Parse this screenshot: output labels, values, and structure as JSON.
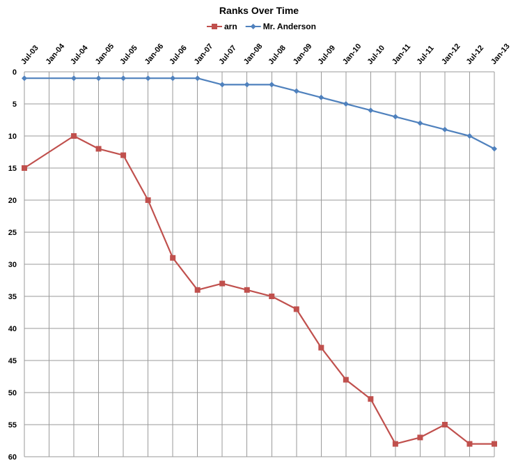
{
  "chart_data": {
    "type": "line",
    "title": "Ranks Over Time",
    "xlabel": "",
    "ylabel": "",
    "categories": [
      "Jul-03",
      "Jan-04",
      "Jul-04",
      "Jan-05",
      "Jul-05",
      "Jan-06",
      "Jul-06",
      "Jan-07",
      "Jul-07",
      "Jan-08",
      "Jul-08",
      "Jan-09",
      "Jul-09",
      "Jan-10",
      "Jul-10",
      "Jan-11",
      "Jul-11",
      "Jan-12",
      "Jul-12",
      "Jan-13"
    ],
    "y_ticks": [
      0,
      5,
      10,
      15,
      20,
      25,
      30,
      35,
      40,
      45,
      50,
      55,
      60
    ],
    "ylim": [
      0,
      60
    ],
    "y_inverted": true,
    "grid": true,
    "legend_position": "top",
    "series": [
      {
        "name": "arn",
        "color": "#c0504d",
        "marker": "square",
        "points": [
          [
            0,
            15
          ],
          [
            2,
            10
          ],
          [
            3,
            12
          ],
          [
            4,
            13
          ],
          [
            5,
            20
          ],
          [
            6,
            29
          ],
          [
            7,
            34
          ],
          [
            8,
            33
          ],
          [
            9,
            34
          ],
          [
            10,
            35
          ],
          [
            11,
            37
          ],
          [
            12,
            43
          ],
          [
            13,
            48
          ],
          [
            14,
            51
          ],
          [
            15,
            58
          ],
          [
            16,
            57
          ],
          [
            17,
            55
          ],
          [
            18,
            58
          ],
          [
            19,
            58
          ]
        ]
      },
      {
        "name": "Mr. Anderson",
        "color": "#4f81bd",
        "marker": "diamond",
        "points": [
          [
            0,
            1
          ],
          [
            2,
            1
          ],
          [
            3,
            1
          ],
          [
            4,
            1
          ],
          [
            5,
            1
          ],
          [
            6,
            1
          ],
          [
            7,
            1
          ],
          [
            8,
            2
          ],
          [
            9,
            2
          ],
          [
            10,
            2
          ],
          [
            11,
            3
          ],
          [
            12,
            4
          ],
          [
            13,
            5
          ],
          [
            14,
            6
          ],
          [
            15,
            7
          ],
          [
            16,
            8
          ],
          [
            17,
            9
          ],
          [
            18,
            10
          ],
          [
            19,
            12
          ]
        ]
      }
    ]
  }
}
